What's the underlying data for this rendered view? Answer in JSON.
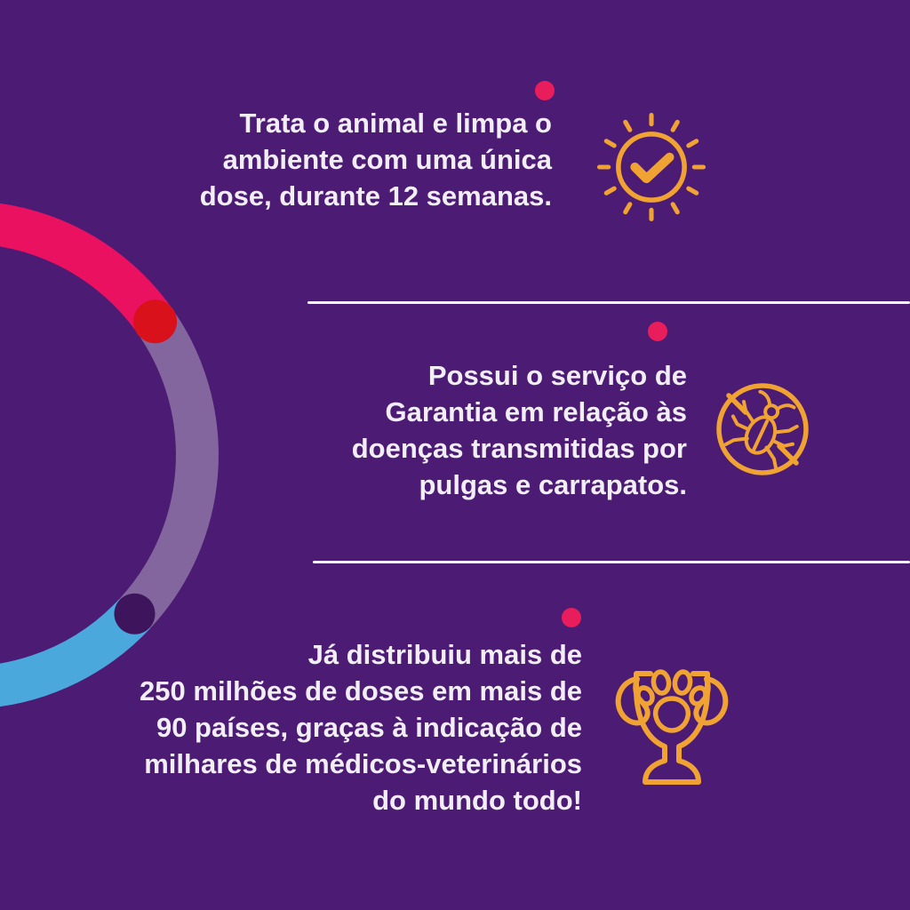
{
  "colors": {
    "bg": "#4C1B74",
    "text": "#F2EEF5",
    "orange": "#F0A232",
    "pinkdot": "#EA1D5C",
    "divider": "#FAF8FB",
    "ringpink": "#EB1161",
    "ringlavender": "#84669F",
    "ringblue": "#4AA8DC",
    "ringreddot": "#D8111B",
    "ringdarkdot": "#3E155C"
  },
  "features": [
    {
      "icon": "sun-check-icon",
      "lines": [
        "Trata o animal e limpa o",
        "ambiente com uma única",
        "dose, durante 12 semanas."
      ]
    },
    {
      "icon": "no-fleas-ticks-icon",
      "lines": [
        "Possui o serviço de",
        "Garantia em relação às",
        "doenças transmitidas por",
        "pulgas e carrapatos."
      ]
    },
    {
      "icon": "trophy-paw-icon",
      "lines": [
        "Já distribuiu mais de",
        "250 milhões de doses em mais de",
        "90 países, graças à indicação de",
        "milhares de médicos-veterinários",
        "do mundo todo!"
      ]
    }
  ]
}
